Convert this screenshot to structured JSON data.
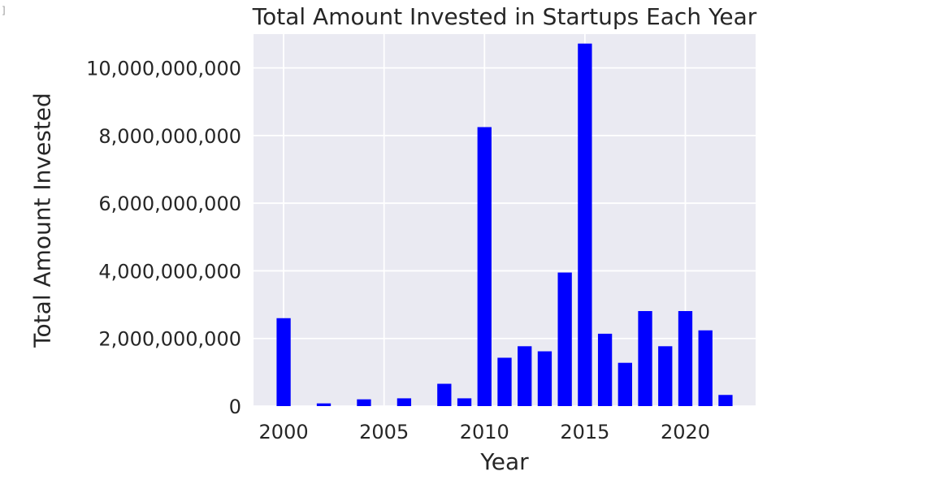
{
  "cell_marker": "]",
  "chart_data": {
    "type": "bar",
    "title": "Total Amount Invested in Startups Each Year",
    "xlabel": "Year",
    "ylabel": "Total Amount Invested",
    "bar_color": "#0000ff",
    "plot_background": "#eaeaf2",
    "grid": true,
    "xlim": [
      1998.5,
      2023.5
    ],
    "ylim": [
      0,
      11000000000
    ],
    "xticks": [
      2000,
      2005,
      2010,
      2015,
      2020
    ],
    "xtick_labels": [
      "2000",
      "2005",
      "2010",
      "2015",
      "2020"
    ],
    "yticks": [
      0,
      2000000000,
      4000000000,
      6000000000,
      8000000000,
      10000000000
    ],
    "ytick_labels": [
      "0",
      "2,000,000,000",
      "4,000,000,000",
      "6,000,000,000",
      "8,000,000,000",
      "10,000,000,000"
    ],
    "bar_width": 0.7,
    "x": [
      2000,
      2002,
      2004,
      2006,
      2008,
      2009,
      2010,
      2011,
      2012,
      2013,
      2014,
      2015,
      2016,
      2017,
      2018,
      2019,
      2020,
      2021,
      2022
    ],
    "values": [
      2600000000,
      80000000,
      200000000,
      230000000,
      660000000,
      230000000,
      8250000000,
      1430000000,
      1770000000,
      1620000000,
      3950000000,
      10720000000,
      2140000000,
      1280000000,
      2810000000,
      1770000000,
      2810000000,
      2240000000,
      330000000
    ]
  }
}
